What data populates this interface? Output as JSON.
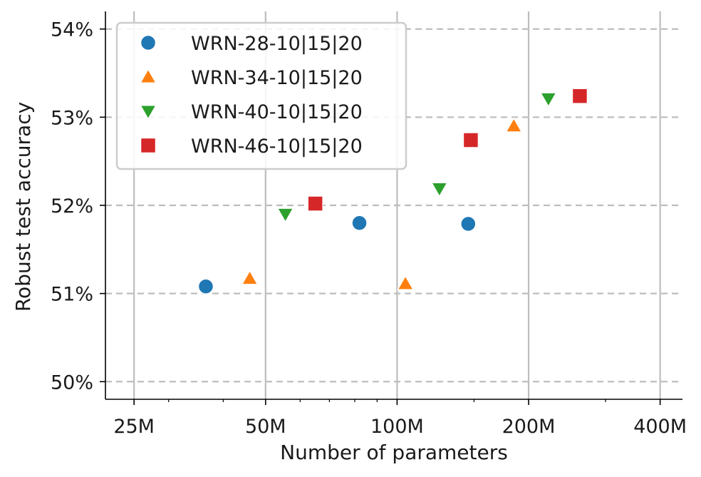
{
  "chart_data": {
    "type": "scatter",
    "xscale": "log",
    "xlabel": "Number of parameters",
    "ylabel": "Robust test accuracy",
    "xlim": [
      21.5,
      450
    ],
    "ylim": [
      49.8,
      54.2
    ],
    "xticks": [
      {
        "value": 25,
        "label": "25M"
      },
      {
        "value": 50,
        "label": "50M"
      },
      {
        "value": 100,
        "label": "100M"
      },
      {
        "value": 200,
        "label": "200M"
      },
      {
        "value": 400,
        "label": "400M"
      }
    ],
    "yticks": [
      {
        "value": 50,
        "label": "50%"
      },
      {
        "value": 51,
        "label": "51%"
      },
      {
        "value": 52,
        "label": "52%"
      },
      {
        "value": 53,
        "label": "53%"
      },
      {
        "value": 54,
        "label": "54%"
      }
    ],
    "grid": {
      "x": "solid",
      "y": "dashed"
    },
    "legend_position": "top-left",
    "series": [
      {
        "name": "WRN-28-10|15|20",
        "marker": "circle",
        "color": "#1f77b4",
        "points": [
          {
            "x": 36.5,
            "y": 51.08
          },
          {
            "x": 82,
            "y": 51.8
          },
          {
            "x": 145.5,
            "y": 51.79
          }
        ]
      },
      {
        "name": "WRN-34-10|15|20",
        "marker": "triangle-up",
        "color": "#ff7f0e",
        "points": [
          {
            "x": 46,
            "y": 51.17
          },
          {
            "x": 104.5,
            "y": 51.11
          },
          {
            "x": 185,
            "y": 52.9
          }
        ]
      },
      {
        "name": "WRN-40-10|15|20",
        "marker": "triangle-down",
        "color": "#2ca02c",
        "points": [
          {
            "x": 55.5,
            "y": 51.9
          },
          {
            "x": 125,
            "y": 52.19
          },
          {
            "x": 222,
            "y": 53.21
          }
        ]
      },
      {
        "name": "WRN-46-10|15|20",
        "marker": "square",
        "color": "#d62728",
        "points": [
          {
            "x": 65,
            "y": 52.02
          },
          {
            "x": 147.5,
            "y": 52.74
          },
          {
            "x": 262,
            "y": 53.24
          }
        ]
      }
    ]
  }
}
